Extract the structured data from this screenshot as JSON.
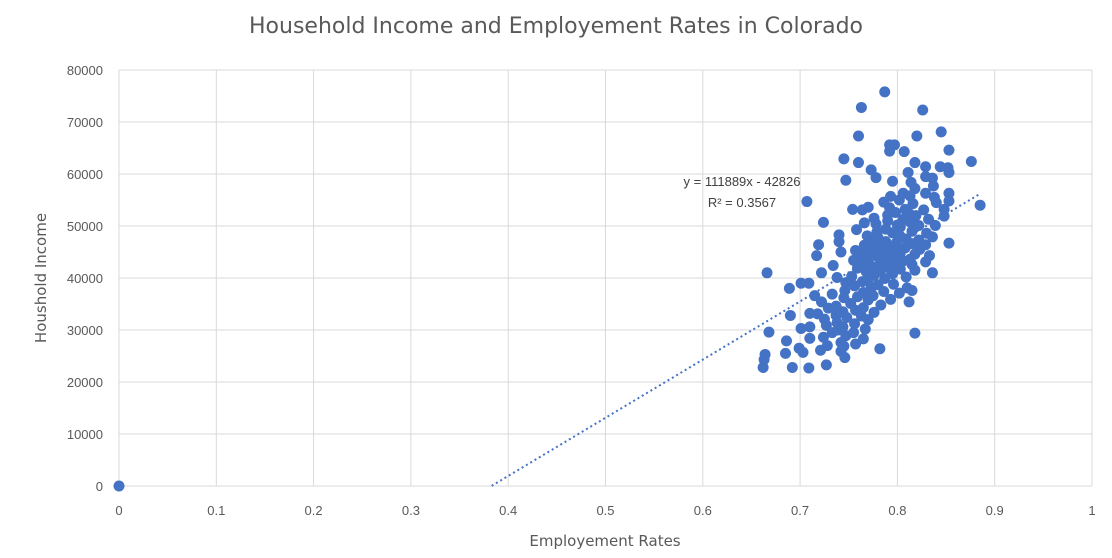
{
  "chart_data": {
    "type": "scatter",
    "title": "Household Income and Employement Rates in Colorado",
    "xlabel": "Employement Rates",
    "ylabel": "Houshold Income",
    "xlim": [
      0,
      1
    ],
    "ylim": [
      0,
      80000
    ],
    "x_ticks": [
      "0",
      "0.1",
      "0.2",
      "0.3",
      "0.4",
      "0.5",
      "0.6",
      "0.7",
      "0.8",
      "0.9",
      "1"
    ],
    "y_ticks": [
      "0",
      "10000",
      "20000",
      "30000",
      "40000",
      "50000",
      "60000",
      "70000",
      "80000"
    ],
    "grid": true,
    "marker_color": "#4472c4",
    "trendline": {
      "type": "linear",
      "slope": 111889,
      "intercept": -42826,
      "equation": "y = 111889x - 42826",
      "r_squared": "R² = 0.3567",
      "style": "dotted",
      "x_range": [
        0.383,
        0.885
      ]
    },
    "points": [
      [
        0,
        0
      ],
      [
        0.787,
        75800
      ],
      [
        0.763,
        72800
      ],
      [
        0.826,
        72300
      ],
      [
        0.845,
        68100
      ],
      [
        0.76,
        67300
      ],
      [
        0.82,
        67300
      ],
      [
        0.792,
        65600
      ],
      [
        0.797,
        65600
      ],
      [
        0.792,
        64400
      ],
      [
        0.853,
        64600
      ],
      [
        0.807,
        64300
      ],
      [
        0.745,
        62900
      ],
      [
        0.76,
        62200
      ],
      [
        0.818,
        62200
      ],
      [
        0.829,
        61400
      ],
      [
        0.844,
        61400
      ],
      [
        0.852,
        61200
      ],
      [
        0.876,
        62400
      ],
      [
        0.773,
        60800
      ],
      [
        0.811,
        60300
      ],
      [
        0.853,
        60300
      ],
      [
        0.778,
        59300
      ],
      [
        0.829,
        59500
      ],
      [
        0.836,
        59200
      ],
      [
        0.747,
        58800
      ],
      [
        0.795,
        58600
      ],
      [
        0.814,
        58400
      ],
      [
        0.837,
        57700
      ],
      [
        0.818,
        57200
      ],
      [
        0.806,
        56300
      ],
      [
        0.829,
        56300
      ],
      [
        0.853,
        56300
      ],
      [
        0.793,
        55700
      ],
      [
        0.813,
        55800
      ],
      [
        0.838,
        55500
      ],
      [
        0.802,
        55000
      ],
      [
        0.853,
        54800
      ],
      [
        0.707,
        54700
      ],
      [
        0.786,
        54600
      ],
      [
        0.816,
        54300
      ],
      [
        0.84,
        54500
      ],
      [
        0.885,
        54000
      ],
      [
        0.77,
        53600
      ],
      [
        0.792,
        53500
      ],
      [
        0.808,
        53200
      ],
      [
        0.754,
        53200
      ],
      [
        0.764,
        53100
      ],
      [
        0.827,
        53100
      ],
      [
        0.848,
        53200
      ],
      [
        0.798,
        52600
      ],
      [
        0.812,
        52400
      ],
      [
        0.79,
        52100
      ],
      [
        0.819,
        52000
      ],
      [
        0.848,
        51900
      ],
      [
        0.776,
        51500
      ],
      [
        0.832,
        51300
      ],
      [
        0.806,
        51300
      ],
      [
        0.79,
        51000
      ],
      [
        0.813,
        50800
      ],
      [
        0.724,
        50700
      ],
      [
        0.766,
        50600
      ],
      [
        0.778,
        50400
      ],
      [
        0.8,
        50200
      ],
      [
        0.822,
        50100
      ],
      [
        0.839,
        50100
      ],
      [
        0.803,
        49800
      ],
      [
        0.788,
        49400
      ],
      [
        0.758,
        49300
      ],
      [
        0.815,
        49000
      ],
      [
        0.779,
        48900
      ],
      [
        0.795,
        48700
      ],
      [
        0.83,
        48600
      ],
      [
        0.74,
        48300
      ],
      [
        0.769,
        48100
      ],
      [
        0.803,
        48000
      ],
      [
        0.836,
        47900
      ],
      [
        0.78,
        47800
      ],
      [
        0.809,
        47500
      ],
      [
        0.822,
        47300
      ],
      [
        0.775,
        47100
      ],
      [
        0.788,
        47000
      ],
      [
        0.74,
        47000
      ],
      [
        0.799,
        46800
      ],
      [
        0.853,
        46700
      ],
      [
        0.815,
        46600
      ],
      [
        0.829,
        46400
      ],
      [
        0.786,
        46300
      ],
      [
        0.766,
        46300
      ],
      [
        0.719,
        46400
      ],
      [
        0.797,
        46000
      ],
      [
        0.779,
        45900
      ],
      [
        0.808,
        45800
      ],
      [
        0.823,
        45500
      ],
      [
        0.772,
        45300
      ],
      [
        0.757,
        45300
      ],
      [
        0.787,
        45200
      ],
      [
        0.792,
        45000
      ],
      [
        0.742,
        45000
      ],
      [
        0.803,
        44800
      ],
      [
        0.818,
        44600
      ],
      [
        0.763,
        44500
      ],
      [
        0.717,
        44300
      ],
      [
        0.833,
        44300
      ],
      [
        0.78,
        44100
      ],
      [
        0.797,
        43900
      ],
      [
        0.771,
        43900
      ],
      [
        0.813,
        43600
      ],
      [
        0.755,
        43400
      ],
      [
        0.788,
        43300
      ],
      [
        0.806,
        43300
      ],
      [
        0.829,
        43100
      ],
      [
        0.764,
        42900
      ],
      [
        0.782,
        42600
      ],
      [
        0.796,
        42600
      ],
      [
        0.815,
        42600
      ],
      [
        0.734,
        42400
      ],
      [
        0.773,
        42300
      ],
      [
        0.79,
        42000
      ],
      [
        0.759,
        41900
      ],
      [
        0.803,
        41700
      ],
      [
        0.818,
        41500
      ],
      [
        0.782,
        41400
      ],
      [
        0.768,
        41200
      ],
      [
        0.722,
        41000
      ],
      [
        0.666,
        41000
      ],
      [
        0.836,
        41000
      ],
      [
        0.795,
        40800
      ],
      [
        0.776,
        40500
      ],
      [
        0.753,
        40300
      ],
      [
        0.809,
        40200
      ],
      [
        0.738,
        40100
      ],
      [
        0.787,
        39900
      ],
      [
        0.77,
        39700
      ],
      [
        0.764,
        39300
      ],
      [
        0.747,
        39100
      ],
      [
        0.796,
        38800
      ],
      [
        0.78,
        38700
      ],
      [
        0.756,
        38500
      ],
      [
        0.709,
        39000
      ],
      [
        0.701,
        39000
      ],
      [
        0.773,
        38100
      ],
      [
        0.81,
        38100
      ],
      [
        0.815,
        37600
      ],
      [
        0.746,
        37600
      ],
      [
        0.689,
        38000
      ],
      [
        0.786,
        37400
      ],
      [
        0.765,
        37200
      ],
      [
        0.802,
        37100
      ],
      [
        0.733,
        36900
      ],
      [
        0.775,
        36600
      ],
      [
        0.759,
        36400
      ],
      [
        0.715,
        36600
      ],
      [
        0.745,
        36200
      ],
      [
        0.793,
        35900
      ],
      [
        0.77,
        35800
      ],
      [
        0.722,
        35400
      ],
      [
        0.812,
        35400
      ],
      [
        0.752,
        35100
      ],
      [
        0.783,
        34800
      ],
      [
        0.737,
        34600
      ],
      [
        0.765,
        34300
      ],
      [
        0.729,
        34200
      ],
      [
        0.757,
        33800
      ],
      [
        0.744,
        33500
      ],
      [
        0.776,
        33400
      ],
      [
        0.71,
        33200
      ],
      [
        0.718,
        33100
      ],
      [
        0.737,
        32800
      ],
      [
        0.763,
        32700
      ],
      [
        0.69,
        32800
      ],
      [
        0.748,
        32400
      ],
      [
        0.725,
        32100
      ],
      [
        0.77,
        32000
      ],
      [
        0.738,
        31400
      ],
      [
        0.756,
        31200
      ],
      [
        0.727,
        30900
      ],
      [
        0.744,
        30600
      ],
      [
        0.71,
        30600
      ],
      [
        0.767,
        30200
      ],
      [
        0.739,
        30000
      ],
      [
        0.701,
        30300
      ],
      [
        0.818,
        29400
      ],
      [
        0.668,
        29600
      ],
      [
        0.755,
        29500
      ],
      [
        0.733,
        29500
      ],
      [
        0.747,
        28900
      ],
      [
        0.724,
        28600
      ],
      [
        0.71,
        28400
      ],
      [
        0.765,
        28300
      ],
      [
        0.686,
        27900
      ],
      [
        0.742,
        27600
      ],
      [
        0.757,
        27300
      ],
      [
        0.728,
        27000
      ],
      [
        0.745,
        26900
      ],
      [
        0.699,
        26500
      ],
      [
        0.782,
        26400
      ],
      [
        0.721,
        26100
      ],
      [
        0.742,
        25900
      ],
      [
        0.703,
        25700
      ],
      [
        0.685,
        25500
      ],
      [
        0.664,
        25300
      ],
      [
        0.746,
        24700
      ],
      [
        0.727,
        23300
      ],
      [
        0.663,
        24300
      ],
      [
        0.662,
        22800
      ],
      [
        0.692,
        22800
      ],
      [
        0.709,
        22700
      ]
    ]
  }
}
